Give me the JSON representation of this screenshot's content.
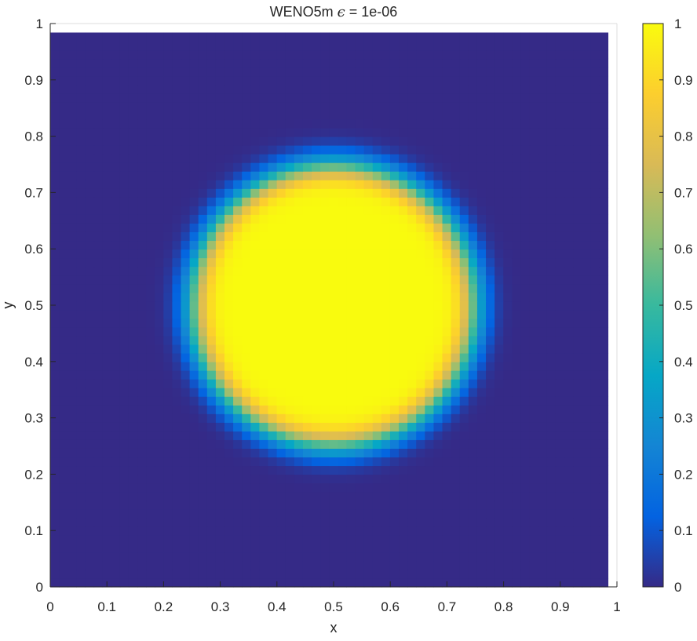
{
  "figure": {
    "title_prefix": "WENO5m ",
    "title_symbol": "ϵ",
    "title_suffix": " = 1e-06"
  },
  "chart_data": {
    "type": "heatmap",
    "title": "WENO5m ϵ = 1e-06",
    "xlabel": "x",
    "ylabel": "y",
    "xlim": [
      0,
      1
    ],
    "ylim": [
      0,
      1
    ],
    "xticks": [
      "0",
      "0.1",
      "0.2",
      "0.3",
      "0.4",
      "0.5",
      "0.6",
      "0.7",
      "0.8",
      "0.9",
      "1"
    ],
    "yticks": [
      "0",
      "0.1",
      "0.2",
      "0.3",
      "0.4",
      "0.5",
      "0.6",
      "0.7",
      "0.8",
      "0.9",
      "1"
    ],
    "colorbar": {
      "colormap": "parula",
      "range": [
        0,
        1
      ],
      "ticks": [
        "0",
        "0.1",
        "0.2",
        "0.3",
        "0.4",
        "0.5",
        "0.6",
        "0.7",
        "0.8",
        "0.9",
        "1"
      ]
    },
    "grid": {
      "nx": 64,
      "ny": 64,
      "x_extent": [
        0,
        0.984
      ],
      "y_extent": [
        0,
        0.984
      ]
    },
    "field": {
      "shape": "disc",
      "center": [
        0.5,
        0.5
      ],
      "radius": 0.25,
      "inside_value": 1,
      "outside_value": 0,
      "transition_width": 0.035
    },
    "grid_lines": false
  },
  "colors": {
    "parula_stops": [
      "#352a87",
      "#0363e1",
      "#1485d4",
      "#06a7c6",
      "#38b99e",
      "#92bf73",
      "#d9ba56",
      "#fcce2e",
      "#f9fb0e"
    ],
    "axis": "#262626"
  }
}
